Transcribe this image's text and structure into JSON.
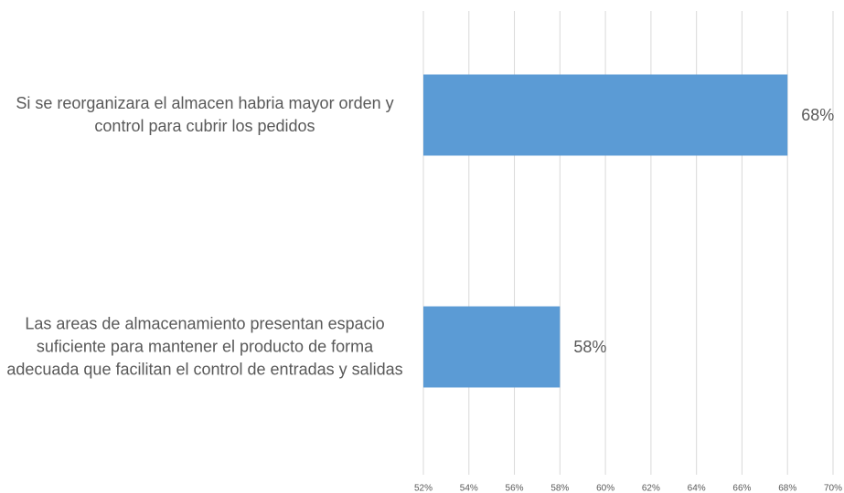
{
  "chart_data": {
    "type": "bar",
    "orientation": "horizontal",
    "categories": [
      "Si se reorganizara el almacen habria mayor orden y control para cubrir los pedidos",
      "Las areas de almacenamiento presentan espacio suficiente para mantener el producto de forma adecuada que facilitan el control de entradas y salidas"
    ],
    "values": [
      68,
      58
    ],
    "value_labels": [
      "68%",
      "58%"
    ],
    "color": "#5b9bd5",
    "xlim": [
      52,
      70
    ],
    "xticks": [
      {
        "value": 52,
        "label": "52%"
      },
      {
        "value": 54,
        "label": "54%"
      },
      {
        "value": 56,
        "label": "56%"
      },
      {
        "value": 58,
        "label": "58%"
      },
      {
        "value": 60,
        "label": "60%"
      },
      {
        "value": 62,
        "label": "62%"
      },
      {
        "value": 64,
        "label": "64%"
      },
      {
        "value": 66,
        "label": "66%"
      },
      {
        "value": 68,
        "label": "68%"
      },
      {
        "value": 70,
        "label": "70%"
      }
    ],
    "grid": true
  }
}
